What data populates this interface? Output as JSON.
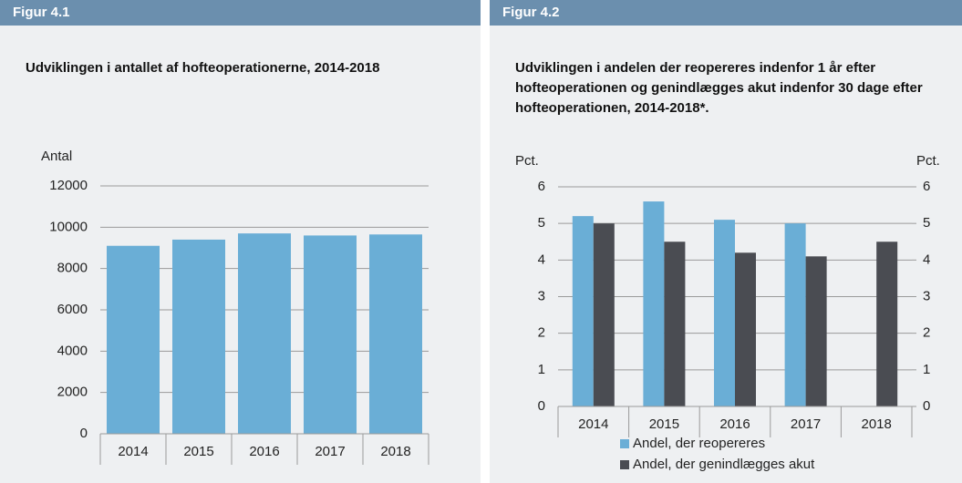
{
  "chart_data": [
    {
      "type": "bar",
      "figure": "Figur 4.1",
      "title": "Udviklingen i antallet af hofteoperationerne, 2014-2018",
      "y_label": "Antal",
      "categories": [
        "2014",
        "2015",
        "2016",
        "2017",
        "2018"
      ],
      "series": [
        {
          "name": null,
          "color": "#6aaed6",
          "values": [
            9100,
            9400,
            9700,
            9600,
            9650
          ]
        }
      ],
      "ylim": [
        0,
        12000
      ],
      "yticks": [
        0,
        2000,
        4000,
        6000,
        8000,
        10000,
        12000
      ],
      "grid": true
    },
    {
      "type": "bar",
      "figure": "Figur 4.2",
      "title": "Udviklingen i andelen der reopereres indenfor 1 år efter hofteoperationen og genindlægges akut indenfor 30 dage efter hofteoperationen, 2014-2018*.",
      "y_label": "Pct.",
      "y2_label": "Pct.",
      "categories": [
        "2014",
        "2015",
        "2016",
        "2017",
        "2018"
      ],
      "series": [
        {
          "name": "Andel, der reopereres",
          "color": "#6aaed6",
          "values": [
            5.2,
            5.6,
            5.1,
            5.0,
            null
          ]
        },
        {
          "name": "Andel, der genindlægges akut",
          "color": "#4a4c52",
          "values": [
            5.0,
            4.5,
            4.2,
            4.1,
            4.5
          ]
        }
      ],
      "ylim": [
        0,
        6
      ],
      "yticks": [
        0,
        1,
        2,
        3,
        4,
        5,
        6
      ],
      "y2lim": [
        0,
        6
      ],
      "y2ticks": [
        0,
        1,
        2,
        3,
        4,
        5,
        6
      ],
      "grid": true
    }
  ]
}
